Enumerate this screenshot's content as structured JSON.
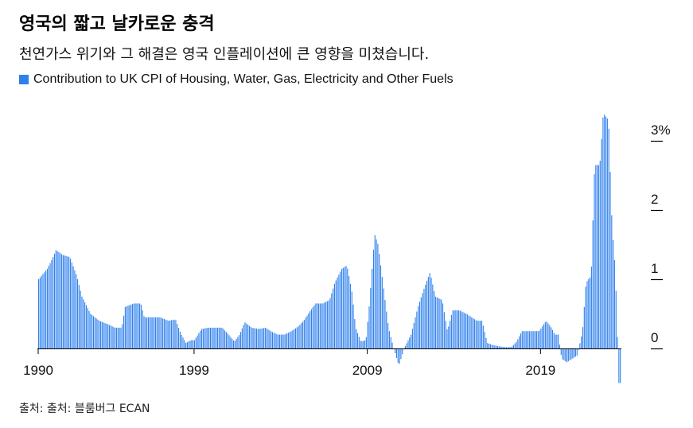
{
  "header": {
    "title": "영국의 짧고 날카로운 충격",
    "subtitle": "천연가스 위기와 그 해결은 영국 인플레이션에 큰 영향을 미쳤습니다."
  },
  "footer": {
    "source": "출처: 출처: 블룸버그 ECAN"
  },
  "colors": {
    "bar": "#2f80ed",
    "axis": "#000000",
    "text": "#111111"
  },
  "chart_data": {
    "type": "bar",
    "xlim": [
      1990.0,
      2023.67
    ],
    "ylim": [
      -0.5,
      3.7
    ],
    "x_ticks": [
      "1990",
      "1999",
      "2009",
      "2019"
    ],
    "y_ticks": [
      "0",
      "1",
      "2",
      "3%"
    ],
    "series": [
      {
        "name": "Contribution to UK CPI of Housing, Water, Gas, Electricity and Other Fuels",
        "points": [
          [
            1990.0,
            1.0
          ],
          [
            1990.5,
            1.15
          ],
          [
            1990.8,
            1.3
          ],
          [
            1991.0,
            1.42
          ],
          [
            1991.4,
            1.35
          ],
          [
            1991.8,
            1.32
          ],
          [
            1992.2,
            1.05
          ],
          [
            1992.5,
            0.75
          ],
          [
            1993.0,
            0.5
          ],
          [
            1993.5,
            0.4
          ],
          [
            1994.0,
            0.35
          ],
          [
            1994.4,
            0.3
          ],
          [
            1994.8,
            0.3
          ],
          [
            1995.0,
            0.6
          ],
          [
            1995.5,
            0.65
          ],
          [
            1995.9,
            0.65
          ],
          [
            1996.1,
            0.45
          ],
          [
            1996.5,
            0.45
          ],
          [
            1997.0,
            0.45
          ],
          [
            1997.5,
            0.4
          ],
          [
            1997.9,
            0.42
          ],
          [
            1998.2,
            0.22
          ],
          [
            1998.5,
            0.08
          ],
          [
            1998.8,
            0.12
          ],
          [
            1999.0,
            0.12
          ],
          [
            1999.4,
            0.28
          ],
          [
            1999.8,
            0.3
          ],
          [
            2000.3,
            0.3
          ],
          [
            2000.6,
            0.3
          ],
          [
            2000.9,
            0.22
          ],
          [
            2001.3,
            0.1
          ],
          [
            2001.6,
            0.2
          ],
          [
            2001.9,
            0.38
          ],
          [
            2002.3,
            0.3
          ],
          [
            2002.7,
            0.28
          ],
          [
            2003.1,
            0.3
          ],
          [
            2003.4,
            0.25
          ],
          [
            2003.8,
            0.2
          ],
          [
            2004.2,
            0.2
          ],
          [
            2004.6,
            0.25
          ],
          [
            2005.0,
            0.32
          ],
          [
            2005.3,
            0.4
          ],
          [
            2005.7,
            0.55
          ],
          [
            2006.0,
            0.65
          ],
          [
            2006.4,
            0.65
          ],
          [
            2006.8,
            0.7
          ],
          [
            2007.1,
            0.95
          ],
          [
            2007.5,
            1.15
          ],
          [
            2007.8,
            1.2
          ],
          [
            2008.1,
            0.8
          ],
          [
            2008.3,
            0.3
          ],
          [
            2008.6,
            0.1
          ],
          [
            2008.9,
            0.12
          ],
          [
            2009.1,
            0.65
          ],
          [
            2009.4,
            1.65
          ],
          [
            2009.6,
            1.5
          ],
          [
            2009.9,
            0.9
          ],
          [
            2010.2,
            0.3
          ],
          [
            2010.5,
            0.0
          ],
          [
            2010.8,
            -0.25
          ],
          [
            2011.1,
            0.0
          ],
          [
            2011.5,
            0.2
          ],
          [
            2011.9,
            0.6
          ],
          [
            2012.3,
            0.9
          ],
          [
            2012.6,
            1.1
          ],
          [
            2012.9,
            0.75
          ],
          [
            2013.3,
            0.7
          ],
          [
            2013.6,
            0.25
          ],
          [
            2013.9,
            0.55
          ],
          [
            2014.3,
            0.55
          ],
          [
            2014.7,
            0.5
          ],
          [
            2015.0,
            0.45
          ],
          [
            2015.3,
            0.4
          ],
          [
            2015.6,
            0.4
          ],
          [
            2015.9,
            0.08
          ],
          [
            2016.2,
            0.05
          ],
          [
            2016.6,
            0.03
          ],
          [
            2016.9,
            0.02
          ],
          [
            2017.3,
            0.02
          ],
          [
            2017.6,
            0.1
          ],
          [
            2017.9,
            0.25
          ],
          [
            2018.3,
            0.25
          ],
          [
            2018.6,
            0.25
          ],
          [
            2018.9,
            0.25
          ],
          [
            2019.3,
            0.4
          ],
          [
            2019.6,
            0.3
          ],
          [
            2019.8,
            0.2
          ],
          [
            2020.0,
            0.2
          ],
          [
            2020.2,
            -0.15
          ],
          [
            2020.5,
            -0.2
          ],
          [
            2020.8,
            -0.15
          ],
          [
            2021.1,
            -0.1
          ],
          [
            2021.4,
            0.25
          ],
          [
            2021.6,
            0.95
          ],
          [
            2021.9,
            1.05
          ],
          [
            2022.1,
            2.65
          ],
          [
            2022.4,
            2.65
          ],
          [
            2022.6,
            3.4
          ],
          [
            2022.9,
            3.3
          ],
          [
            2023.1,
            1.8
          ],
          [
            2023.3,
            1.1
          ],
          [
            2023.5,
            -0.5
          ]
        ]
      }
    ]
  }
}
